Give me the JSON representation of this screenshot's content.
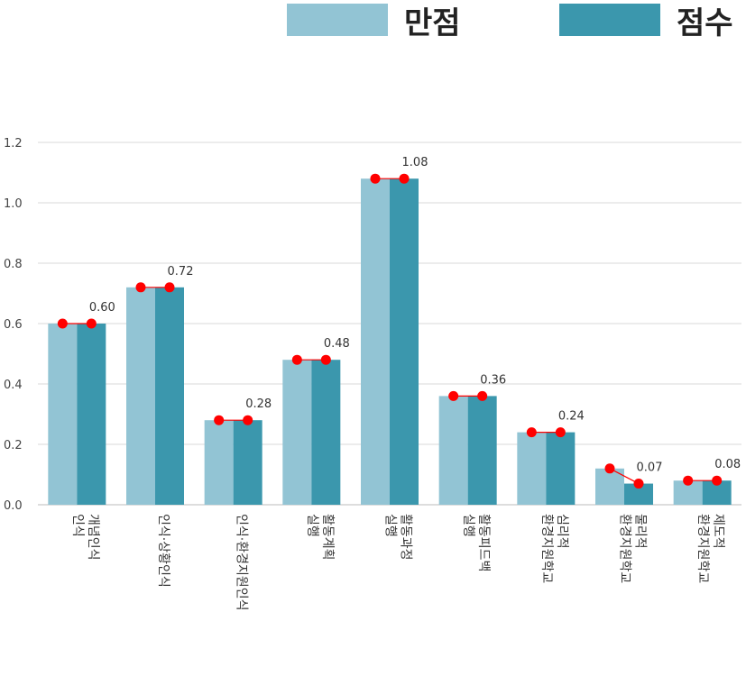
{
  "chart_data": {
    "type": "bar",
    "categories": [
      "인식 개념인식",
      "인식 상황인식",
      "인식 환경지원인식",
      "실행 활동계획",
      "실행 활동과정",
      "실행 활동피드백",
      "환경지원 학교심리적",
      "환경지원 학교물리적",
      "환경지원 학교제도적"
    ],
    "category_label_lines": [
      [
        "인식",
        "개념인식"
      ],
      [
        "인식·상황인식"
      ],
      [
        "인식·환경지원인식"
      ],
      [
        "실행",
        "활동계획"
      ],
      [
        "실행",
        "활동과정"
      ],
      [
        "실행",
        "활동피드백"
      ],
      [
        "환경지원학교",
        "심리적"
      ],
      [
        "환경지원학교",
        "물리적"
      ],
      [
        "환경지원학교",
        "제도적"
      ]
    ],
    "series": [
      {
        "name": "만점",
        "values": [
          0.6,
          0.72,
          0.28,
          0.48,
          1.08,
          0.36,
          0.24,
          0.12,
          0.08
        ],
        "color": "#92c4d4"
      },
      {
        "name": "점수",
        "values": [
          0.6,
          0.72,
          0.28,
          0.48,
          1.08,
          0.36,
          0.24,
          0.07,
          0.08
        ],
        "color": "#3b97ad"
      }
    ],
    "data_labels": [
      "0.60",
      "0.72",
      "0.28",
      "0.48",
      "1.08",
      "0.36",
      "0.24",
      "0.07",
      "0.08"
    ],
    "y_ticks": [
      "0.0",
      "0.2",
      "0.4",
      "0.6",
      "0.8",
      "1.0",
      "1.2"
    ],
    "ylim": [
      0,
      1.2
    ],
    "grid": true,
    "legend_position": "top-right",
    "marker_color": "#ff0000"
  }
}
